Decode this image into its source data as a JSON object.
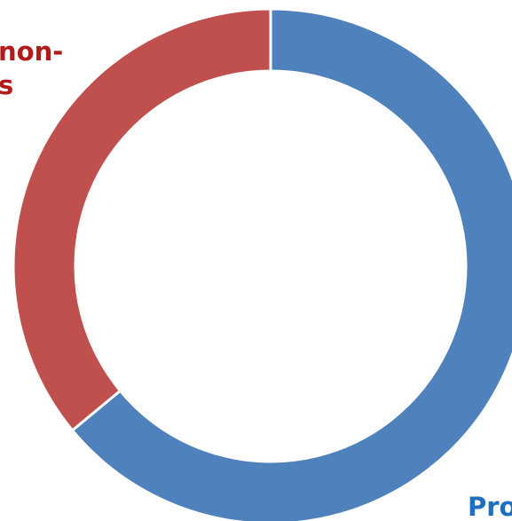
{
  "chart_data": {
    "type": "pie",
    "donut": true,
    "title": "",
    "slices": [
      {
        "label_lines": [
          "Pro"
        ],
        "value": 64,
        "color": "#4f81bd",
        "label_color": "#1f6fc1"
      },
      {
        "label_lines": [
          "non-",
          "s"
        ],
        "value": 36,
        "color": "#c0504d",
        "label_color": "#b31b1b"
      }
    ]
  }
}
